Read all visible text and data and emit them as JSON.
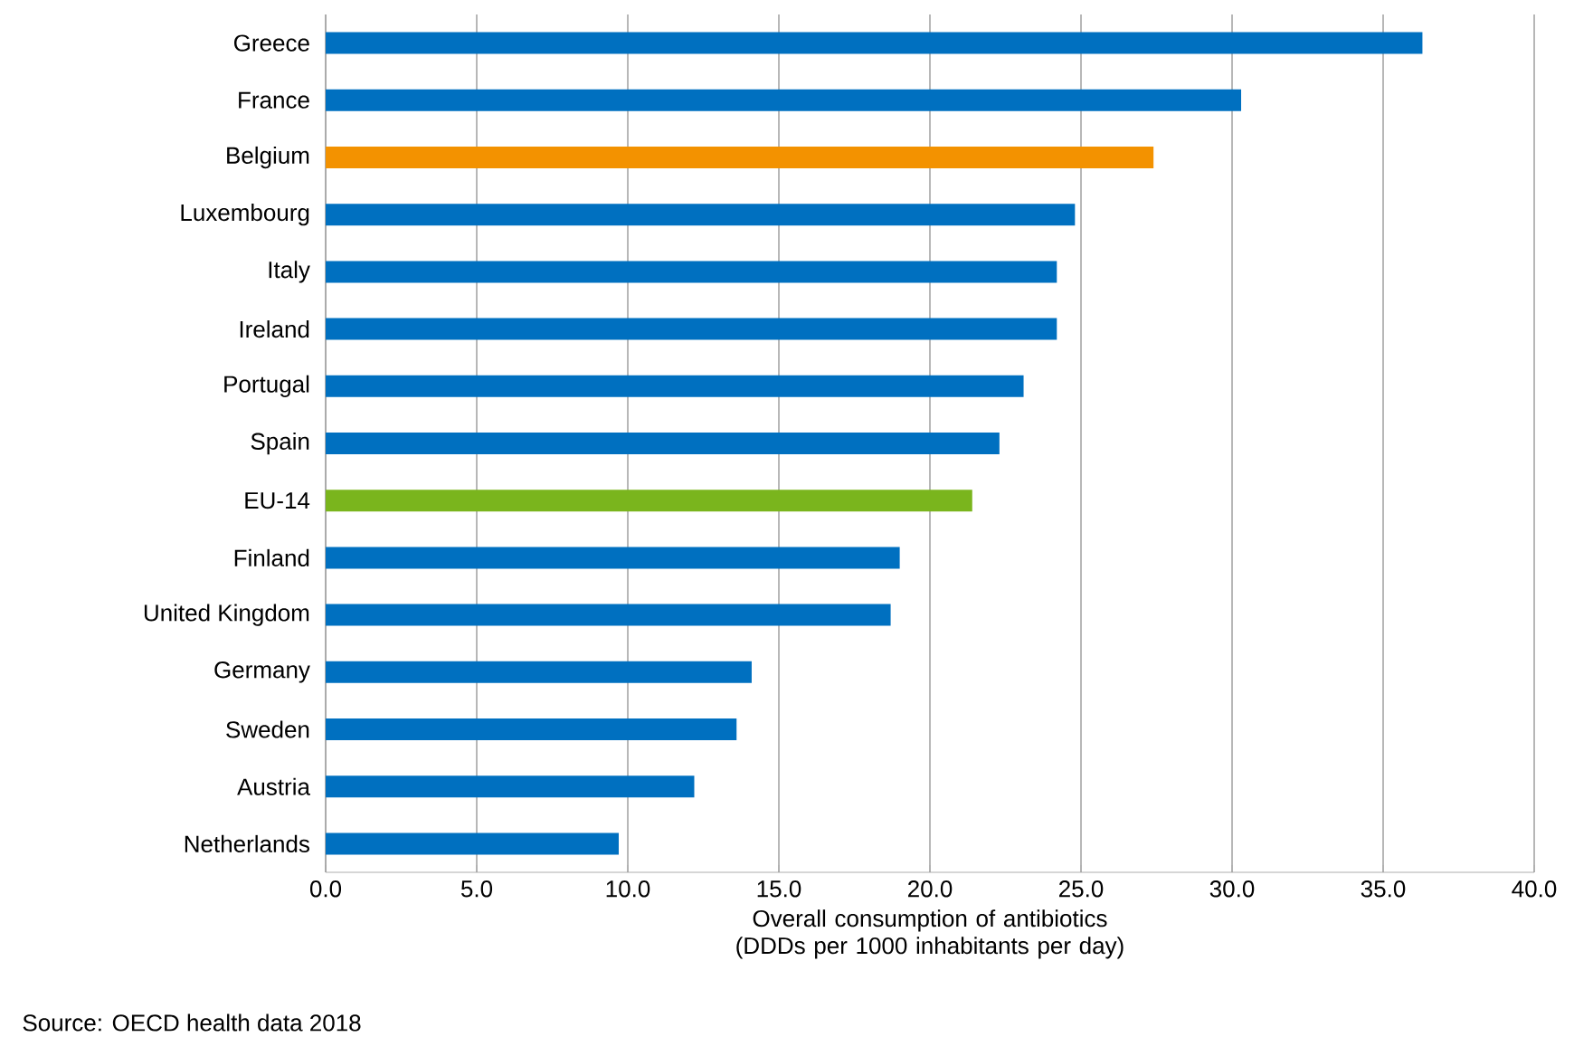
{
  "chart_data": {
    "type": "bar",
    "orientation": "horizontal",
    "xlabel": "Overall consumption of antibiotics (DDDs per 1000 inhabitants per day)",
    "categories": [
      "Greece",
      "France",
      "Belgium",
      "Luxembourg",
      "Italy",
      "Ireland",
      "Portugal",
      "Spain",
      "EU-14",
      "Finland",
      "United Kingdom",
      "Germany",
      "Sweden",
      "Austria",
      "Netherlands"
    ],
    "values": [
      36.3,
      30.3,
      27.4,
      24.8,
      24.2,
      24.2,
      23.1,
      22.3,
      21.4,
      19.0,
      18.7,
      14.1,
      13.6,
      12.2,
      9.7
    ],
    "colors": [
      "#0070c0",
      "#0070c0",
      "#f39200",
      "#0070c0",
      "#0070c0",
      "#0070c0",
      "#0070c0",
      "#0070c0",
      "#7ab51d",
      "#0070c0",
      "#0070c0",
      "#0070c0",
      "#0070c0",
      "#0070c0",
      "#0070c0"
    ],
    "xlim": [
      0,
      40
    ],
    "xticks": [
      {
        "value": 0,
        "label": "0.0"
      },
      {
        "value": 5,
        "label": "5.0"
      },
      {
        "value": 10,
        "label": "10.0"
      },
      {
        "value": 15,
        "label": "15.0"
      },
      {
        "value": 20,
        "label": "20.0"
      },
      {
        "value": 25,
        "label": "25.0"
      },
      {
        "value": 30,
        "label": "30.0"
      },
      {
        "value": 35,
        "label": "35.0"
      },
      {
        "value": 40,
        "label": "40.0"
      }
    ],
    "grid": "x",
    "annotations": [
      "Source: OECD health data 2018"
    ]
  }
}
